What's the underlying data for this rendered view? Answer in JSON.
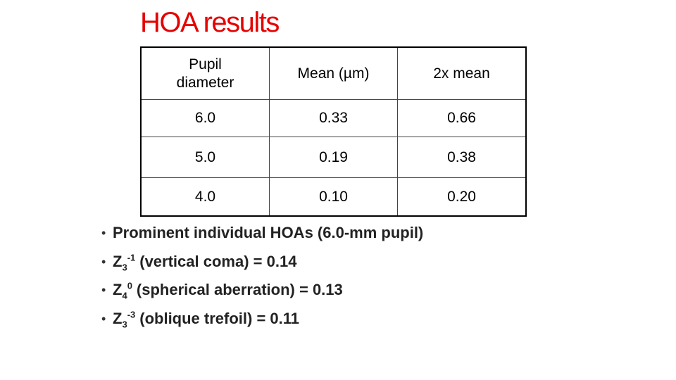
{
  "title": "HOA results",
  "table": {
    "header": [
      "Pupil diameter",
      "Mean (µm)",
      "2x mean"
    ],
    "rows": [
      [
        "6.0",
        "0.33",
        "0.66"
      ],
      [
        "5.0",
        "0.19",
        "0.38"
      ],
      [
        "4.0",
        "0.10",
        "0.20"
      ]
    ]
  },
  "bullets": [
    {
      "text": "Prominent individual HOAs (6.0-mm pupil)"
    },
    {
      "symbol": "Z",
      "sub": "3",
      "sup": "-1",
      "text": "(vertical coma) = 0.14"
    },
    {
      "symbol": "Z",
      "sub": "4",
      "sup": "0",
      "text": "(spherical aberration) = 0.13"
    },
    {
      "symbol": "Z",
      "sub": "3",
      "sup": "-3",
      "text": "(oblique trefoil) = 0.11"
    }
  ]
}
